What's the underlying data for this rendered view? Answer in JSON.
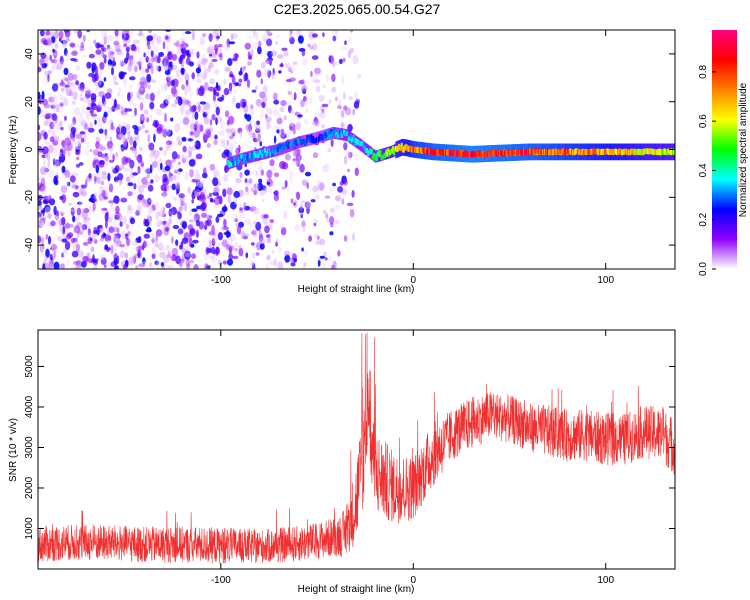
{
  "title": "C2E3.2025.065.00.54.G27",
  "chart_data": [
    {
      "type": "heatmap",
      "xlabel": "Height of straight line (km)",
      "ylabel": "Frequency (Hz)",
      "xlim": [
        -195,
        136
      ],
      "ylim": [
        -50,
        50
      ],
      "x_ticks": [
        -100,
        0,
        100
      ],
      "x_tick_labels": [
        "-100",
        "0",
        "100"
      ],
      "y_ticks": [
        -40,
        -20,
        0,
        20,
        40
      ],
      "y_tick_labels": [
        "-40",
        "-20",
        "0",
        "20",
        "40"
      ],
      "colorbar": {
        "label": "Normalized spectral amplitude",
        "range": [
          0,
          0.97
        ],
        "ticks": [
          0.0,
          0.2,
          0.4,
          0.6,
          0.8
        ],
        "tick_labels": [
          "0.0",
          "0.2",
          "0.4",
          "0.6",
          "0.8"
        ],
        "colormap": [
          "#ffffff",
          "#8f00ff",
          "#0000ff",
          "#00ffff",
          "#00ff00",
          "#ffff00",
          "#ff8000",
          "#ff0000",
          "#ff0080"
        ]
      },
      "noise_region": {
        "x_range": [
          -195,
          -28
        ],
        "freq_range": [
          -50,
          50
        ],
        "amplitude": [
          0.02,
          0.25
        ]
      },
      "signal_track": [
        {
          "x": -97,
          "f": -6,
          "a": 0.35
        },
        {
          "x": -90,
          "f": -4,
          "a": 0.3
        },
        {
          "x": -80,
          "f": -2,
          "a": 0.35
        },
        {
          "x": -70,
          "f": 0,
          "a": 0.3
        },
        {
          "x": -60,
          "f": 3,
          "a": 0.3
        },
        {
          "x": -50,
          "f": 5,
          "a": 0.25
        },
        {
          "x": -42,
          "f": 7,
          "a": 0.3
        },
        {
          "x": -35,
          "f": 6,
          "a": 0.35
        },
        {
          "x": -28,
          "f": 2,
          "a": 0.35
        },
        {
          "x": -20,
          "f": -3,
          "a": 0.45
        },
        {
          "x": -12,
          "f": -1,
          "a": 0.55
        },
        {
          "x": -6,
          "f": 1,
          "a": 0.65
        },
        {
          "x": 0,
          "f": 0,
          "a": 0.75
        },
        {
          "x": 10,
          "f": -1,
          "a": 0.8
        },
        {
          "x": 30,
          "f": -2,
          "a": 0.85
        },
        {
          "x": 60,
          "f": -1,
          "a": 0.8
        },
        {
          "x": 80,
          "f": -1,
          "a": 0.75
        },
        {
          "x": 100,
          "f": -1,
          "a": 0.7
        },
        {
          "x": 120,
          "f": -1,
          "a": 0.6
        },
        {
          "x": 136,
          "f": -1,
          "a": 0.55
        }
      ]
    },
    {
      "type": "line",
      "xlabel": "Height of straight line (km)",
      "ylabel": "SNR (10 * v/v)",
      "xlim": [
        -195,
        136
      ],
      "ylim": [
        0,
        5900
      ],
      "x_ticks": [
        -100,
        0,
        100
      ],
      "x_tick_labels": [
        "-100",
        "0",
        "100"
      ],
      "y_ticks": [
        1000,
        2000,
        3000,
        4000,
        5000
      ],
      "y_tick_labels": [
        "1000",
        "2000",
        "3000",
        "4000",
        "5000"
      ],
      "color": "#f03030",
      "x": [
        -195,
        -180,
        -160,
        -140,
        -120,
        -100,
        -80,
        -60,
        -50,
        -40,
        -35,
        -30,
        -26,
        -24,
        -20,
        -10,
        0,
        10,
        20,
        30,
        40,
        50,
        60,
        70,
        80,
        90,
        100,
        110,
        120,
        130,
        136
      ],
      "y": [
        600,
        650,
        650,
        600,
        600,
        580,
        550,
        620,
        700,
        800,
        900,
        1600,
        2600,
        4400,
        2400,
        2000,
        2000,
        2800,
        3300,
        3600,
        3800,
        3700,
        3500,
        3400,
        3300,
        3300,
        3200,
        3200,
        3400,
        3300,
        3000
      ],
      "noise_amplitude": [
        450,
        450,
        450,
        450,
        450,
        450,
        420,
        450,
        450,
        500,
        600,
        1000,
        1400,
        1500,
        1100,
        900,
        800,
        800,
        650,
        650,
        600,
        600,
        600,
        650,
        650,
        650,
        650,
        650,
        650,
        700,
        700
      ]
    }
  ]
}
